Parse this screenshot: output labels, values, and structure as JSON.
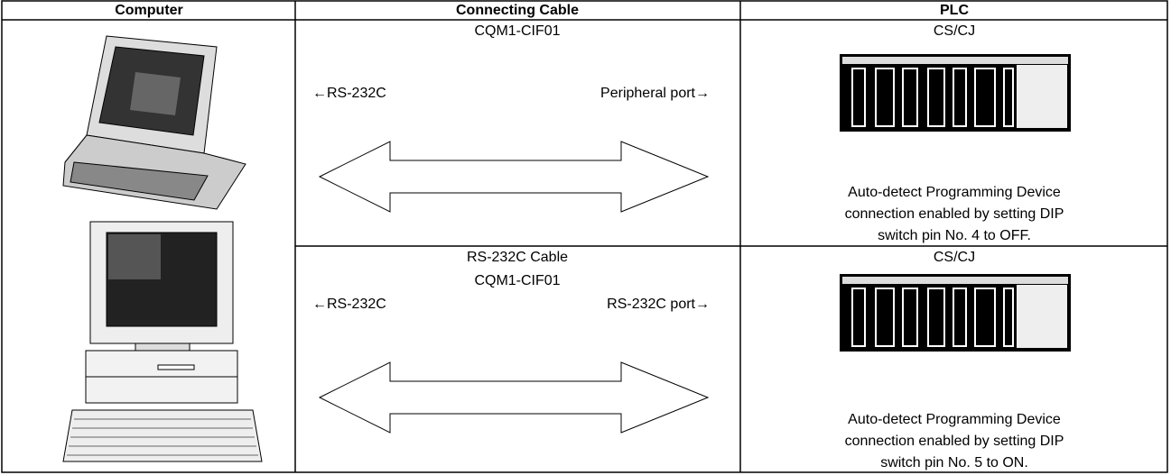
{
  "header": [
    "Computer",
    "Connecting Cable",
    "PLC"
  ],
  "rows": [
    {
      "cable": {
        "lines": [
          "CQM1-CIF01"
        ],
        "left": "←RS-232C",
        "right": "Peripheral port→"
      },
      "plc": {
        "name": "CS/CJ",
        "note": [
          "Auto-detect Programming Device",
          "connection enabled by setting DIP",
          "switch pin No. 4 to OFF."
        ]
      }
    },
    {
      "cable": {
        "lines": [
          "RS-232C Cable",
          "CQM1-CIF01"
        ],
        "left": "←RS-232C",
        "right": "RS-232C port→"
      },
      "plc": {
        "name": "CS/CJ",
        "note": [
          "Auto-detect Programming Device",
          "connection enabled by setting DIP",
          "switch pin No. 5 to ON."
        ]
      }
    }
  ]
}
